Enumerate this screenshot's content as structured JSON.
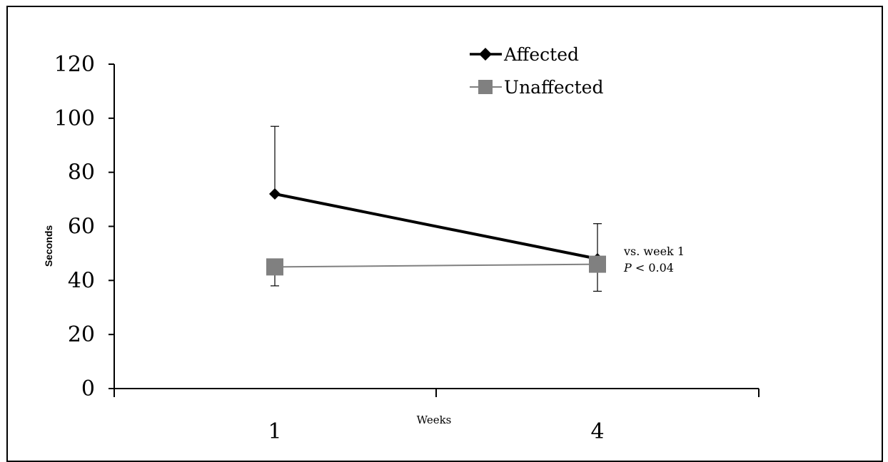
{
  "chart_data": {
    "type": "line",
    "xlabel": "Weeks",
    "ylabel": "Seconds",
    "categories": [
      "1",
      "4"
    ],
    "ylim": [
      0,
      120
    ],
    "yticks": [
      0,
      20,
      40,
      60,
      80,
      100,
      120
    ],
    "grid": false,
    "legend_position": "top-right",
    "series": [
      {
        "name": "Affected",
        "values": [
          72,
          48
        ],
        "error_upper": [
          97,
          61
        ],
        "error_lower": [
          null,
          null
        ],
        "marker": "diamond",
        "color": "#000000"
      },
      {
        "name": "Unaffected",
        "values": [
          45,
          46
        ],
        "error_upper": [
          null,
          null
        ],
        "error_lower": [
          38,
          36
        ],
        "marker": "square",
        "color": "#808080"
      }
    ],
    "annotations": [
      {
        "line1": "vs. week 1",
        "line2_italic": "P",
        "line2_rest": " < 0.04"
      }
    ]
  }
}
